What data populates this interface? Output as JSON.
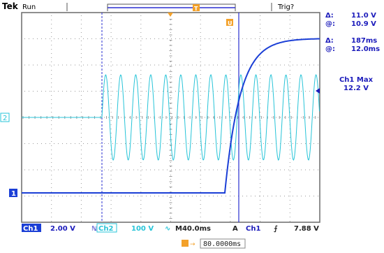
{
  "status": {
    "brand": "Tek",
    "mode": "Run",
    "trigger_state": "Trig?"
  },
  "markers": {
    "trigger_position": "T",
    "cursor_marker": "U"
  },
  "channels": {
    "ch1": {
      "marker": "1",
      "label": "Ch1",
      "scale": "2.00 V",
      "color": "#1b3fd6",
      "coupling_icon": "dc-coupling-icon"
    },
    "ch2": {
      "marker": "2",
      "label": "Ch2",
      "scale": "100 V",
      "color": "#27c4d8",
      "coupling_symbol": "∿",
      "prefix_symbol": "ℕ"
    }
  },
  "readouts": {
    "row1": {
      "symbol": "Δ:",
      "value": "11.0 V"
    },
    "row2": {
      "symbol": "@:",
      "value": "10.9 V"
    },
    "row3": {
      "symbol": "Δ:",
      "value": "187ms"
    },
    "row4": {
      "symbol": "@:",
      "value": "12.0ms"
    },
    "measure_label": "Ch1 Max",
    "measure_value": "12.2 V"
  },
  "horizontal": {
    "timebase": "M40.0ms",
    "trigger_mode": "A",
    "trigger_source": "Ch1",
    "slope_symbol": "⨍",
    "trigger_level": "7.88 V"
  },
  "horizontal_position": {
    "icon": "trigger-pos-icon",
    "arrow": "→",
    "value": "80.0000ms"
  },
  "colors": {
    "graticule_border": "#6a6a6a",
    "grid_dots": "#9a9a9a",
    "cursor_lines": "#2a2fd0",
    "text_blue": "#1b1bbb",
    "background": "#ffffff"
  },
  "waveform_ch2": {
    "periods_visible": 14.5,
    "state": "sine burst after cursor"
  },
  "waveform_ch1": {
    "step_level": "11.0 V",
    "rise": "exponential"
  }
}
